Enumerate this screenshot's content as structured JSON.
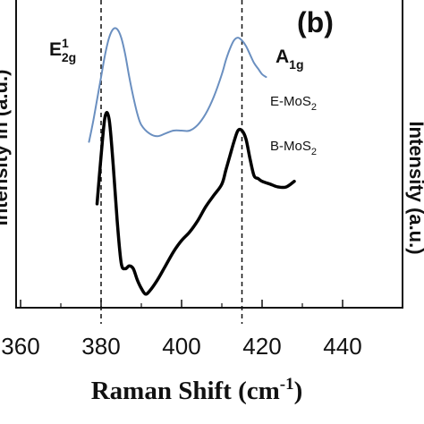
{
  "chart_data": {
    "type": "line",
    "panel_label": "(b)",
    "xlabel_main": "Raman Shift (cm",
    "xlabel_sup": "-1",
    "xlabel_close": ")",
    "ylabel_left": "Intensity in (a.u.)",
    "ylabel_right": "Intensity (a.u.)",
    "xlim": [
      360,
      440
    ],
    "ylim": [
      0,
      100
    ],
    "xticks": [
      "360",
      "380",
      "400",
      "420",
      "440"
    ],
    "xtick_values": [
      360,
      380,
      400,
      420,
      440
    ],
    "peak_markers": [
      {
        "x": 380,
        "label": "E",
        "sup": "1",
        "sub": "2g"
      },
      {
        "x": 415,
        "label": "A",
        "sub": "1g"
      }
    ],
    "series": [
      {
        "name_main": "E-MoS",
        "name_sub": "2",
        "color": "#6a8fc0",
        "x": [
          377,
          378,
          379,
          380,
          381,
          382,
          383,
          384,
          385,
          386,
          387,
          388,
          389,
          390,
          392,
          394,
          396,
          398,
          400,
          402,
          404,
          406,
          408,
          410,
          411,
          412,
          413,
          414,
          415,
          416,
          417,
          418,
          419,
          420,
          421
        ],
        "y": [
          56,
          63,
          71,
          79,
          87,
          93,
          96,
          96,
          93,
          87,
          79,
          72,
          66,
          62,
          59,
          58,
          59,
          60,
          60,
          60,
          62,
          66,
          72,
          80,
          85,
          89,
          92,
          93,
          92,
          90,
          87,
          84,
          82,
          80,
          79
        ]
      },
      {
        "name_main": "B-MoS",
        "name_sub": "2",
        "color": "#000000",
        "x": [
          379,
          380,
          381,
          382,
          383,
          384,
          385,
          386,
          387,
          388,
          389,
          390,
          391,
          392,
          394,
          396,
          398,
          400,
          402,
          404,
          406,
          408,
          410,
          411,
          412,
          413,
          414,
          415,
          416,
          417,
          418,
          419,
          420,
          422,
          424,
          426,
          428
        ],
        "y": [
          34,
          51,
          65,
          64,
          48,
          28,
          13,
          11,
          12,
          11,
          7,
          4,
          2,
          3,
          7,
          12,
          17,
          21,
          24,
          28,
          33,
          37,
          41,
          46,
          51,
          56,
          60,
          60,
          57,
          50,
          44,
          43,
          42,
          41,
          40,
          40,
          42
        ]
      }
    ]
  }
}
